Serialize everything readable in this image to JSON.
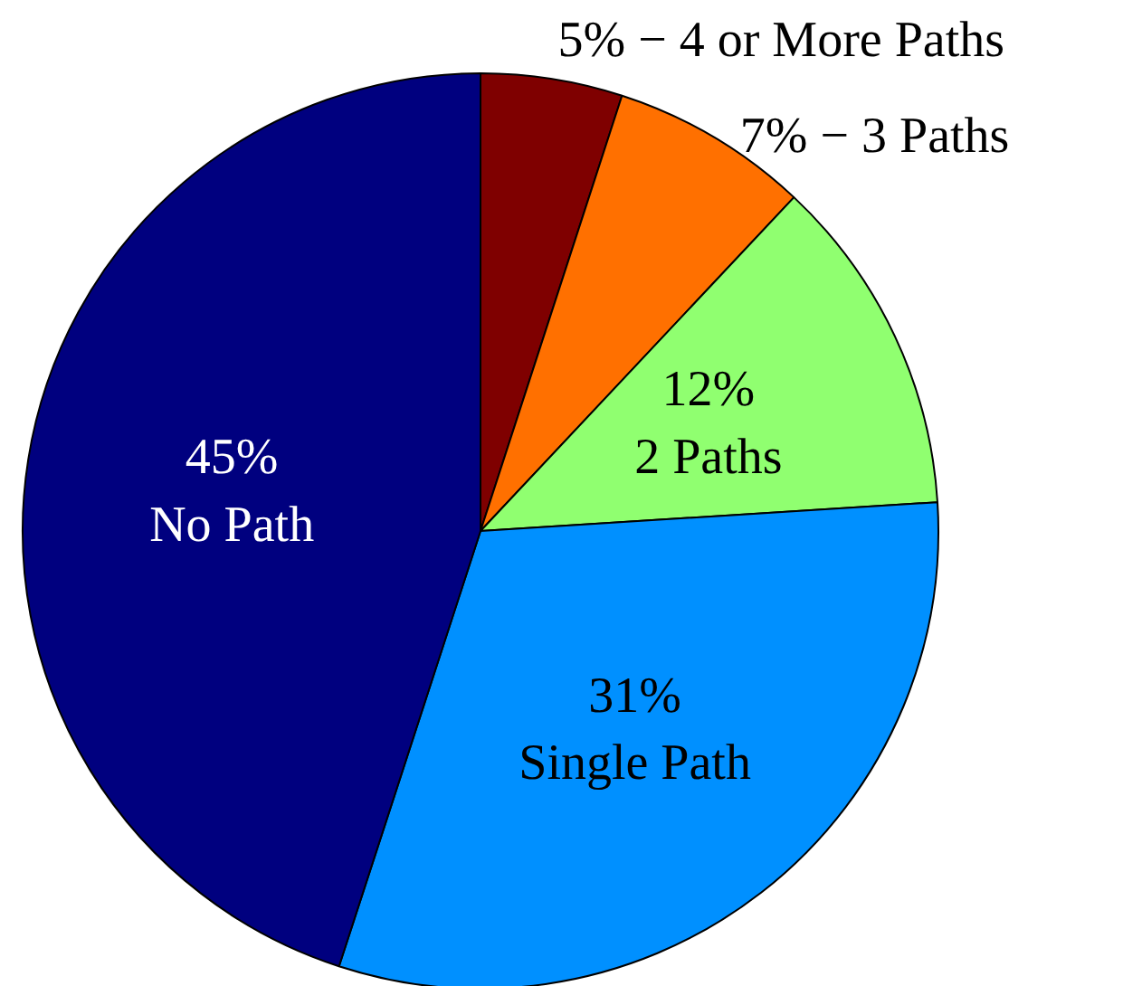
{
  "chart_data": {
    "type": "pie",
    "categories": [
      "4 or More Paths",
      "3 Paths",
      "2 Paths",
      "Single Path",
      "No Path"
    ],
    "values": [
      5,
      7,
      12,
      31,
      45
    ],
    "colors": [
      "#7f0000",
      "#ff7000",
      "#90ff70",
      "#0090ff",
      "#00007f"
    ],
    "value_labels": [
      "5% −",
      "7% −",
      "12%",
      "31%",
      "45%"
    ]
  }
}
